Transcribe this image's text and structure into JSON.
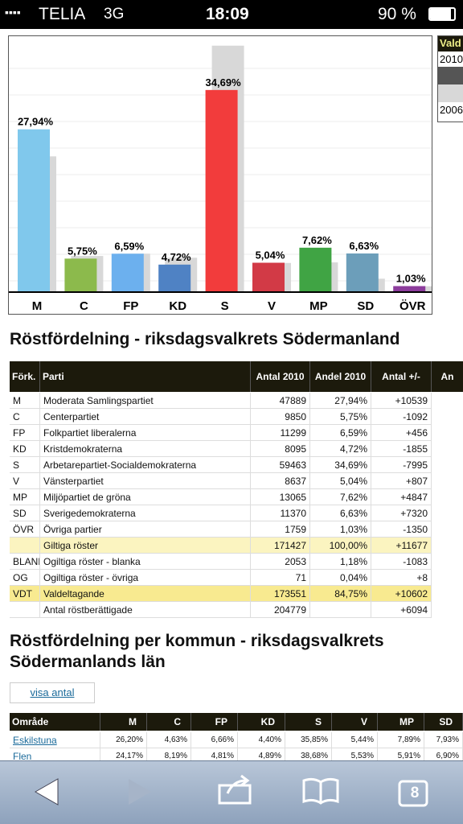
{
  "status_bar": {
    "carrier": "TELIA",
    "network": "3G",
    "time": "18:09",
    "battery": "90 %"
  },
  "chart": {
    "type": "bar",
    "categories": [
      "M",
      "C",
      "FP",
      "KD",
      "S",
      "V",
      "MP",
      "SD",
      "ÖVR"
    ],
    "series": [
      {
        "name": "2010",
        "colors": [
          "#80c8ec",
          "#8cba4c",
          "#6cb0ee",
          "#4f82c4",
          "#f23c3c",
          "#d23a46",
          "#40a444",
          "#6c9eba",
          "#8c3c9c"
        ],
        "values": [
          27.94,
          5.75,
          6.59,
          4.72,
          34.69,
          5.04,
          7.62,
          6.63,
          1.03
        ],
        "value_labels": [
          "27,94%",
          "5,75%",
          "6,59%",
          "4,72%",
          "34,69%",
          "5,04%",
          "7,62%",
          "6,63%",
          "1,03%"
        ]
      },
      {
        "name": "2006",
        "color": "#d8d8d8",
        "values": [
          23.3,
          6.2,
          6.6,
          5.9,
          42.3,
          5.0,
          5.1,
          2.3,
          1.0
        ]
      }
    ],
    "legend_title": "Vald"
  },
  "table1": {
    "title": "Röstfördelning - riksdagsvalkrets Södermanland",
    "header": [
      "Förk.",
      "Parti",
      "Antal 2010",
      "Andel 2010",
      "Antal +/-",
      "An"
    ],
    "rows": [
      [
        "M",
        "Moderata Samlingspartiet",
        "47889",
        "27,94%",
        "+10539"
      ],
      [
        "C",
        "Centerpartiet",
        "9850",
        "5,75%",
        "-1092"
      ],
      [
        "FP",
        "Folkpartiet liberalerna",
        "11299",
        "6,59%",
        "+456"
      ],
      [
        "KD",
        "Kristdemokraterna",
        "8095",
        "4,72%",
        "-1855"
      ],
      [
        "S",
        "Arbetarepartiet-Socialdemokraterna",
        "59463",
        "34,69%",
        "-7995"
      ],
      [
        "V",
        "Vänsterpartiet",
        "8637",
        "5,04%",
        "+807"
      ],
      [
        "MP",
        "Miljöpartiet de gröna",
        "13065",
        "7,62%",
        "+4847"
      ],
      [
        "SD",
        "Sverigedemokraterna",
        "11370",
        "6,63%",
        "+7320"
      ],
      [
        "ÖVR",
        "Övriga partier",
        "1759",
        "1,03%",
        "-1350"
      ],
      [
        "",
        "Giltiga röster",
        "171427",
        "100,00%",
        "+11677"
      ],
      [
        "BLANK",
        "Ogiltiga röster - blanka",
        "2053",
        "1,18%",
        "-1083"
      ],
      [
        "OG",
        "Ogiltiga röster - övriga",
        "71",
        "0,04%",
        "+8"
      ],
      [
        "VDT",
        "Valdeltagande",
        "173551",
        "84,75%",
        "+10602"
      ],
      [
        "",
        "Antal röstberättigade",
        "204779",
        "",
        "+6094"
      ]
    ]
  },
  "table2": {
    "title": "Röstfördelning per kommun - riksdagsvalkrets Södermanlands län",
    "button": "visa antal",
    "header": [
      "Område",
      "M",
      "C",
      "FP",
      "KD",
      "S",
      "V",
      "MP",
      "SD"
    ],
    "rows": [
      [
        "Eskilstuna",
        "26,20%",
        "4,63%",
        "6,66%",
        "4,40%",
        "35,85%",
        "5,44%",
        "7,89%",
        "7,93%"
      ],
      [
        "Flen",
        "24,17%",
        "8,19%",
        "4,81%",
        "4,89%",
        "38,68%",
        "5,53%",
        "5,91%",
        "6,90%"
      ]
    ]
  },
  "toolbar": {
    "tabs": "8"
  }
}
